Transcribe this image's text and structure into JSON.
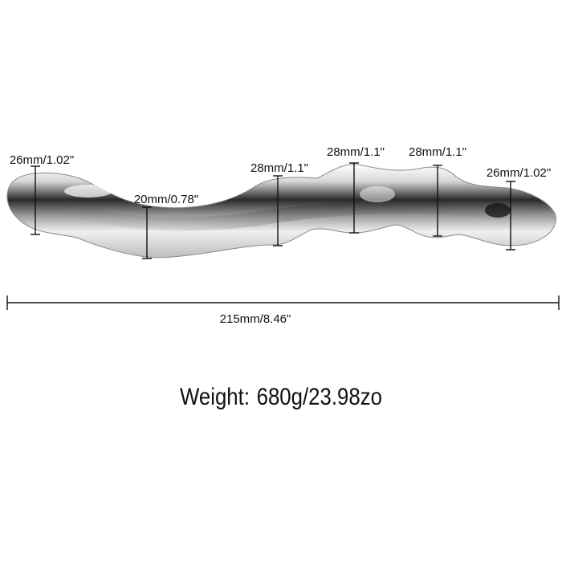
{
  "measurements": [
    {
      "id": "left-tip",
      "label": "26mm/1.02\""
    },
    {
      "id": "neck",
      "label": "20mm/0.78\""
    },
    {
      "id": "bulb-1",
      "label": "28mm/1.1\""
    },
    {
      "id": "bulb-2",
      "label": "28mm/1.1\""
    },
    {
      "id": "bulb-3",
      "label": "28mm/1.1\""
    },
    {
      "id": "right-tip",
      "label": "26mm/1.02\""
    }
  ],
  "length": {
    "label": "215mm/8.46\""
  },
  "weight": {
    "title": "Weight:",
    "value": "680g/23.98zo"
  },
  "colors": {
    "background": "#ffffff",
    "line": "#111111",
    "metal_light": "#f4f4f4",
    "metal_dark": "#1a1a1a"
  }
}
